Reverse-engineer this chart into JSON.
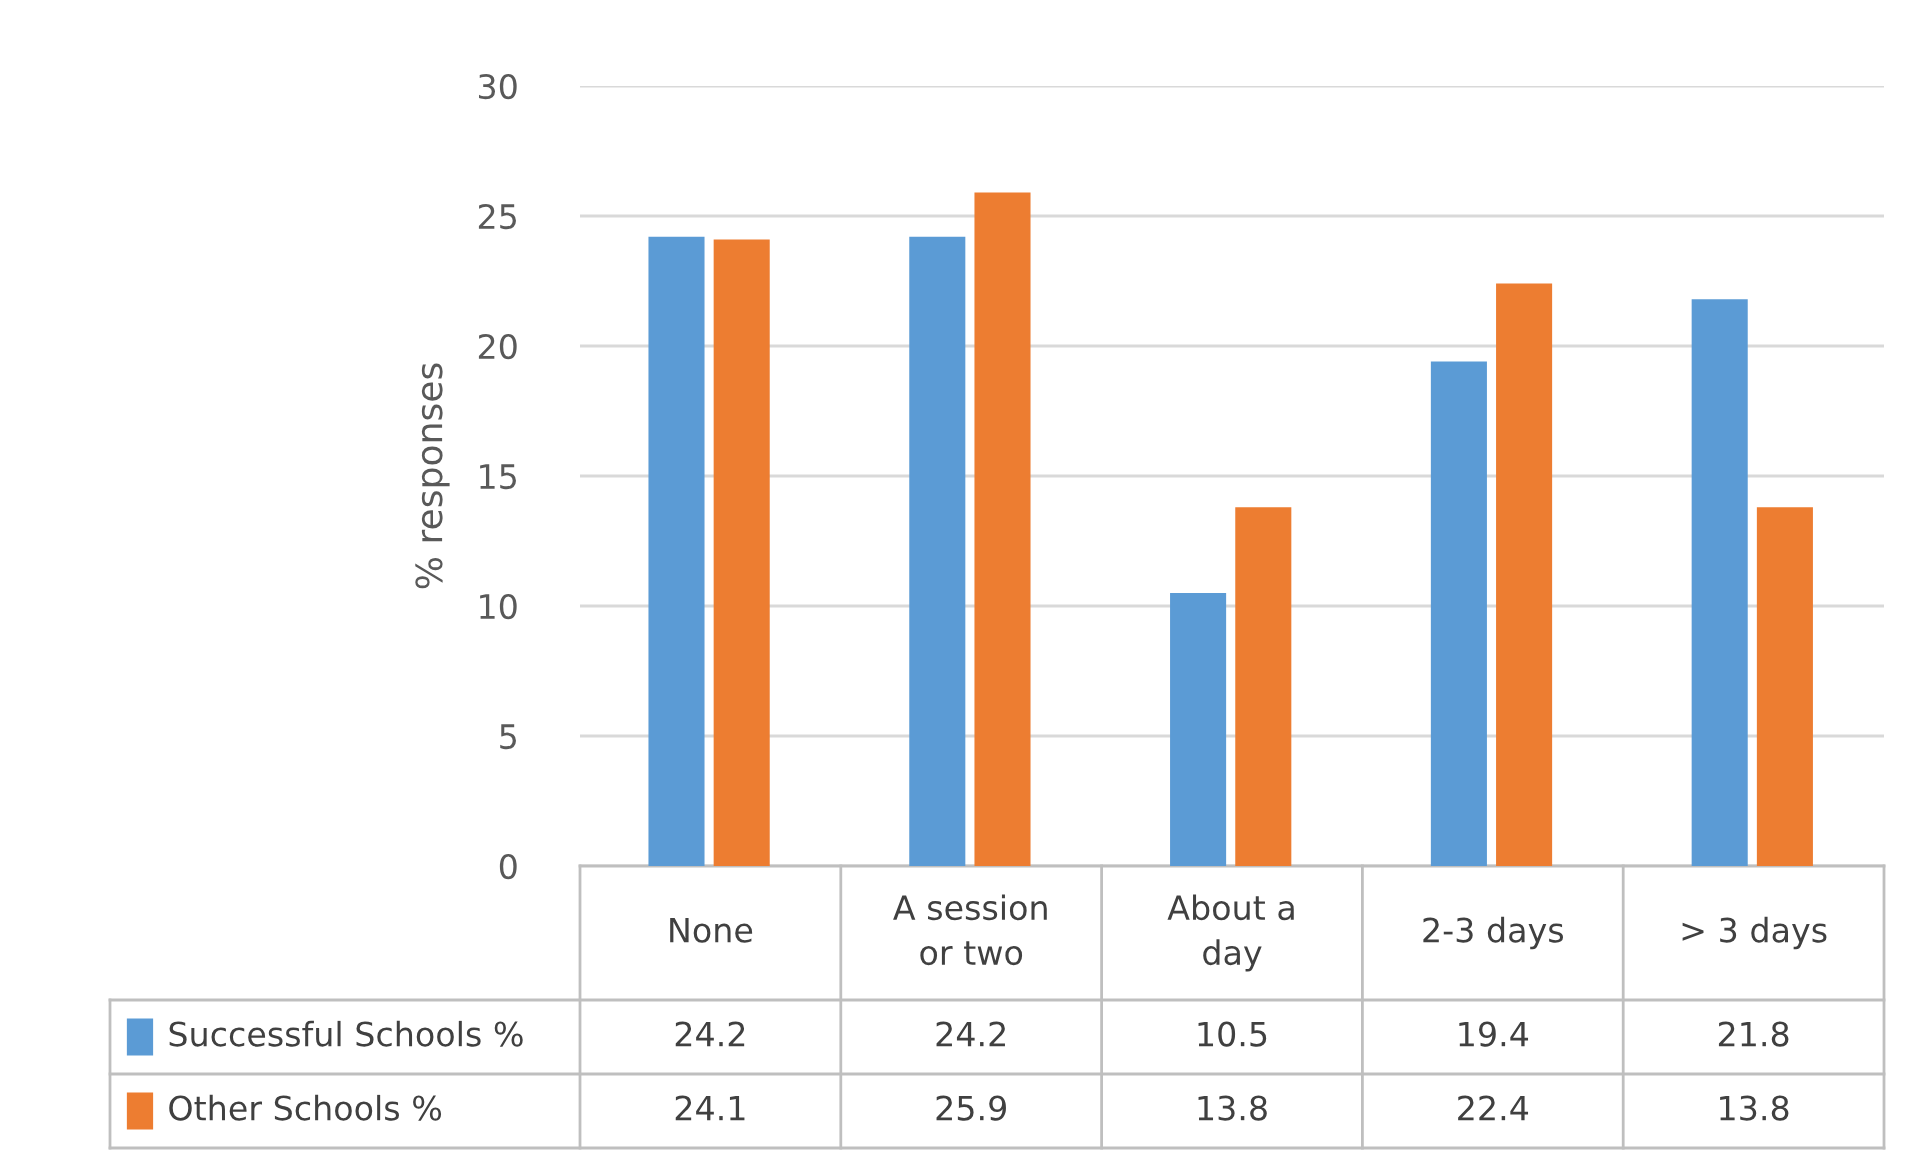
{
  "chart_data": {
    "type": "bar",
    "ylabel": "% responses",
    "categories": [
      "None",
      "A session\nor two",
      "About a\nday",
      "2-3 days",
      "> 3 days"
    ],
    "series": [
      {
        "name": "Successful Schools %",
        "color": "#5b9bd5",
        "values": [
          24.2,
          24.2,
          10.5,
          19.4,
          21.8
        ]
      },
      {
        "name": "Other Schools %",
        "color": "#ed7d31",
        "values": [
          24.1,
          25.9,
          13.8,
          22.4,
          13.8
        ]
      }
    ],
    "ylim": [
      0,
      30
    ],
    "yticks": [
      0,
      5,
      10,
      15,
      20,
      25,
      30
    ],
    "grid": "y",
    "data_labels": true,
    "legend": "bottom"
  }
}
